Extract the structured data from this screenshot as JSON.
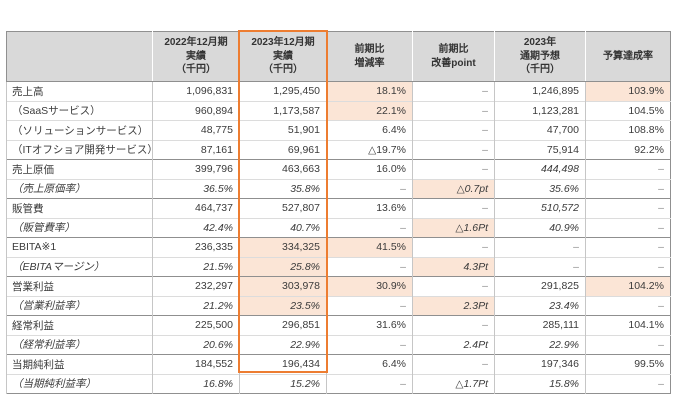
{
  "colors": {
    "accent_border": "#ed7d31",
    "highlight_fill": "#fbe5d6",
    "header_fill": "#d9d9d9"
  },
  "table": {
    "corner_label": "",
    "columns": [
      {
        "label": "2022年12月期\n実績\n（千円）"
      },
      {
        "label": "2023年12月期\n実績\n（千円）",
        "accent": true
      },
      {
        "label": "前期比\n増減率"
      },
      {
        "label": "前期比\n改善point"
      },
      {
        "label": "2023年\n通期予想\n（千円）"
      },
      {
        "label": "予算達成率"
      }
    ],
    "rows": [
      {
        "label": "売上高",
        "style": "main",
        "cells": [
          {
            "t": "1,096,831"
          },
          {
            "t": "1,295,450"
          },
          {
            "t": "18.1%",
            "h": 1
          },
          {
            "t": "–"
          },
          {
            "t": "1,246,895"
          },
          {
            "t": "103.9%",
            "h": 1
          }
        ]
      },
      {
        "label": "（SaaSサービス）",
        "style": "sub",
        "cells": [
          {
            "t": "960,894"
          },
          {
            "t": "1,173,587"
          },
          {
            "t": "22.1%",
            "h": 1
          },
          {
            "t": "–"
          },
          {
            "t": "1,123,281"
          },
          {
            "t": "104.5%"
          }
        ]
      },
      {
        "label": "（ソリューションサービス）",
        "style": "sub",
        "cells": [
          {
            "t": "48,775"
          },
          {
            "t": "51,901"
          },
          {
            "t": "6.4%"
          },
          {
            "t": "–"
          },
          {
            "t": "47,700"
          },
          {
            "t": "108.8%"
          }
        ]
      },
      {
        "label": "（ITオフショア開発サービス）",
        "style": "sub",
        "cells": [
          {
            "t": "87,161"
          },
          {
            "t": "69,961"
          },
          {
            "t": "△19.7%"
          },
          {
            "t": "–"
          },
          {
            "t": "75,914"
          },
          {
            "t": "92.2%"
          }
        ]
      },
      {
        "label": "売上原価",
        "style": "main",
        "sect": 1,
        "cells": [
          {
            "t": "399,796"
          },
          {
            "t": "463,663"
          },
          {
            "t": "16.0%"
          },
          {
            "t": "–"
          },
          {
            "t": "444,498",
            "i": 1
          },
          {
            "t": "–"
          }
        ]
      },
      {
        "label": "（売上原価率）",
        "style": "ratio",
        "cells": [
          {
            "t": "36.5%",
            "i": 1
          },
          {
            "t": "35.8%",
            "i": 1
          },
          {
            "t": "–"
          },
          {
            "t": "△0.7pt",
            "i": 1,
            "h": 1
          },
          {
            "t": "35.6%",
            "i": 1
          },
          {
            "t": "–"
          }
        ]
      },
      {
        "label": "販管費",
        "style": "main",
        "sect": 1,
        "cells": [
          {
            "t": "464,737"
          },
          {
            "t": "527,807"
          },
          {
            "t": "13.6%"
          },
          {
            "t": "–"
          },
          {
            "t": "510,572",
            "i": 1
          },
          {
            "t": "–"
          }
        ]
      },
      {
        "label": "（販管費率）",
        "style": "ratio",
        "cells": [
          {
            "t": "42.4%",
            "i": 1
          },
          {
            "t": "40.7%",
            "i": 1
          },
          {
            "t": "–"
          },
          {
            "t": "△1.6Pt",
            "i": 1,
            "h": 1
          },
          {
            "t": "40.9%",
            "i": 1
          },
          {
            "t": "–"
          }
        ]
      },
      {
        "label": "EBITA※1",
        "style": "main",
        "sect": 1,
        "cells": [
          {
            "t": "236,335"
          },
          {
            "t": "334,325",
            "h": 1
          },
          {
            "t": "41.5%",
            "h": 1
          },
          {
            "t": "–"
          },
          {
            "t": "–"
          },
          {
            "t": "–"
          }
        ]
      },
      {
        "label": "（EBITAマージン）",
        "style": "ratio",
        "cells": [
          {
            "t": "21.5%",
            "i": 1
          },
          {
            "t": "25.8%",
            "i": 1,
            "h": 1
          },
          {
            "t": "–"
          },
          {
            "t": "4.3Pt",
            "i": 1,
            "h": 1
          },
          {
            "t": "–"
          },
          {
            "t": "–"
          }
        ]
      },
      {
        "label": "営業利益",
        "style": "main",
        "sect": 1,
        "cells": [
          {
            "t": "232,297"
          },
          {
            "t": "303,978",
            "h": 1
          },
          {
            "t": "30.9%",
            "h": 1
          },
          {
            "t": "–"
          },
          {
            "t": "291,825"
          },
          {
            "t": "104.2%",
            "h": 1
          }
        ]
      },
      {
        "label": "（営業利益率）",
        "style": "ratio",
        "cells": [
          {
            "t": "21.2%",
            "i": 1
          },
          {
            "t": "23.5%",
            "i": 1,
            "h": 1
          },
          {
            "t": "–"
          },
          {
            "t": "2.3Pt",
            "i": 1,
            "h": 1
          },
          {
            "t": "23.4%",
            "i": 1
          },
          {
            "t": "–"
          }
        ]
      },
      {
        "label": "経常利益",
        "style": "main",
        "sect": 1,
        "cells": [
          {
            "t": "225,500"
          },
          {
            "t": "296,851"
          },
          {
            "t": "31.6%"
          },
          {
            "t": "–"
          },
          {
            "t": "285,111"
          },
          {
            "t": "104.1%"
          }
        ]
      },
      {
        "label": "（経常利益率）",
        "style": "ratio",
        "cells": [
          {
            "t": "20.6%",
            "i": 1
          },
          {
            "t": "22.9%",
            "i": 1
          },
          {
            "t": "–"
          },
          {
            "t": "2.4Pt",
            "i": 1
          },
          {
            "t": "22.9%",
            "i": 1
          },
          {
            "t": "–"
          }
        ]
      },
      {
        "label": "当期純利益",
        "style": "main",
        "sect": 1,
        "cells": [
          {
            "t": "184,552"
          },
          {
            "t": "196,434"
          },
          {
            "t": "6.4%"
          },
          {
            "t": "–"
          },
          {
            "t": "197,346"
          },
          {
            "t": "99.5%"
          }
        ]
      },
      {
        "label": "（当期純利益率）",
        "style": "ratio",
        "cells": [
          {
            "t": "16.8%",
            "i": 1
          },
          {
            "t": "15.2%",
            "i": 1
          },
          {
            "t": "–"
          },
          {
            "t": "△1.7Pt",
            "i": 1
          },
          {
            "t": "15.8%",
            "i": 1
          },
          {
            "t": "–"
          }
        ]
      }
    ]
  }
}
